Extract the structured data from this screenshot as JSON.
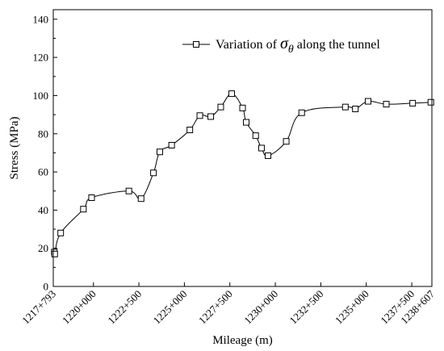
{
  "chart_data": {
    "type": "line",
    "xlabel": "Mileage (m)",
    "ylabel": "Stress (MPa)",
    "legend": {
      "prefix": "Variation of ",
      "symbol": "σ",
      "subscript": "θ",
      "suffix": " along the tunnel",
      "placement": "top-right"
    },
    "xlim": [
      1217793,
      1238607
    ],
    "ylim": [
      0,
      145
    ],
    "x_ticks": [
      1217793,
      1220000,
      1222500,
      1225000,
      1227500,
      1230000,
      1232500,
      1235000,
      1237500,
      1238607
    ],
    "x_tick_labels": [
      "1217+793",
      "1220+000",
      "1222+500",
      "1225+000",
      "1227+500",
      "1230+000",
      "1232+500",
      "1235+000",
      "1237+500",
      "1238+607"
    ],
    "y_ticks": [
      0,
      20,
      40,
      60,
      80,
      100,
      120,
      140
    ],
    "y_tick_labels": [
      "0",
      "20",
      "40",
      "60",
      "80",
      "100",
      "120",
      "140"
    ],
    "grid": false,
    "series": [
      {
        "name": "Variation of σθ along the tunnel",
        "color": "#000000",
        "marker": "square-open",
        "x": [
          1217850,
          1217870,
          1218200,
          1219450,
          1219900,
          1221950,
          1222620,
          1223300,
          1223650,
          1224300,
          1225300,
          1225850,
          1226450,
          1227000,
          1227600,
          1228200,
          1228400,
          1228920,
          1229240,
          1229600,
          1230600,
          1231450,
          1233850,
          1234400,
          1235100,
          1236100,
          1237550,
          1238550
        ],
        "values": [
          18,
          17,
          28,
          40.5,
          46.5,
          50,
          46,
          59.5,
          70.5,
          74,
          82,
          89.5,
          89,
          94,
          101,
          93.5,
          86,
          79,
          72.5,
          68.5,
          76,
          91,
          94,
          93,
          97,
          95.5,
          96,
          96.5
        ]
      }
    ]
  }
}
